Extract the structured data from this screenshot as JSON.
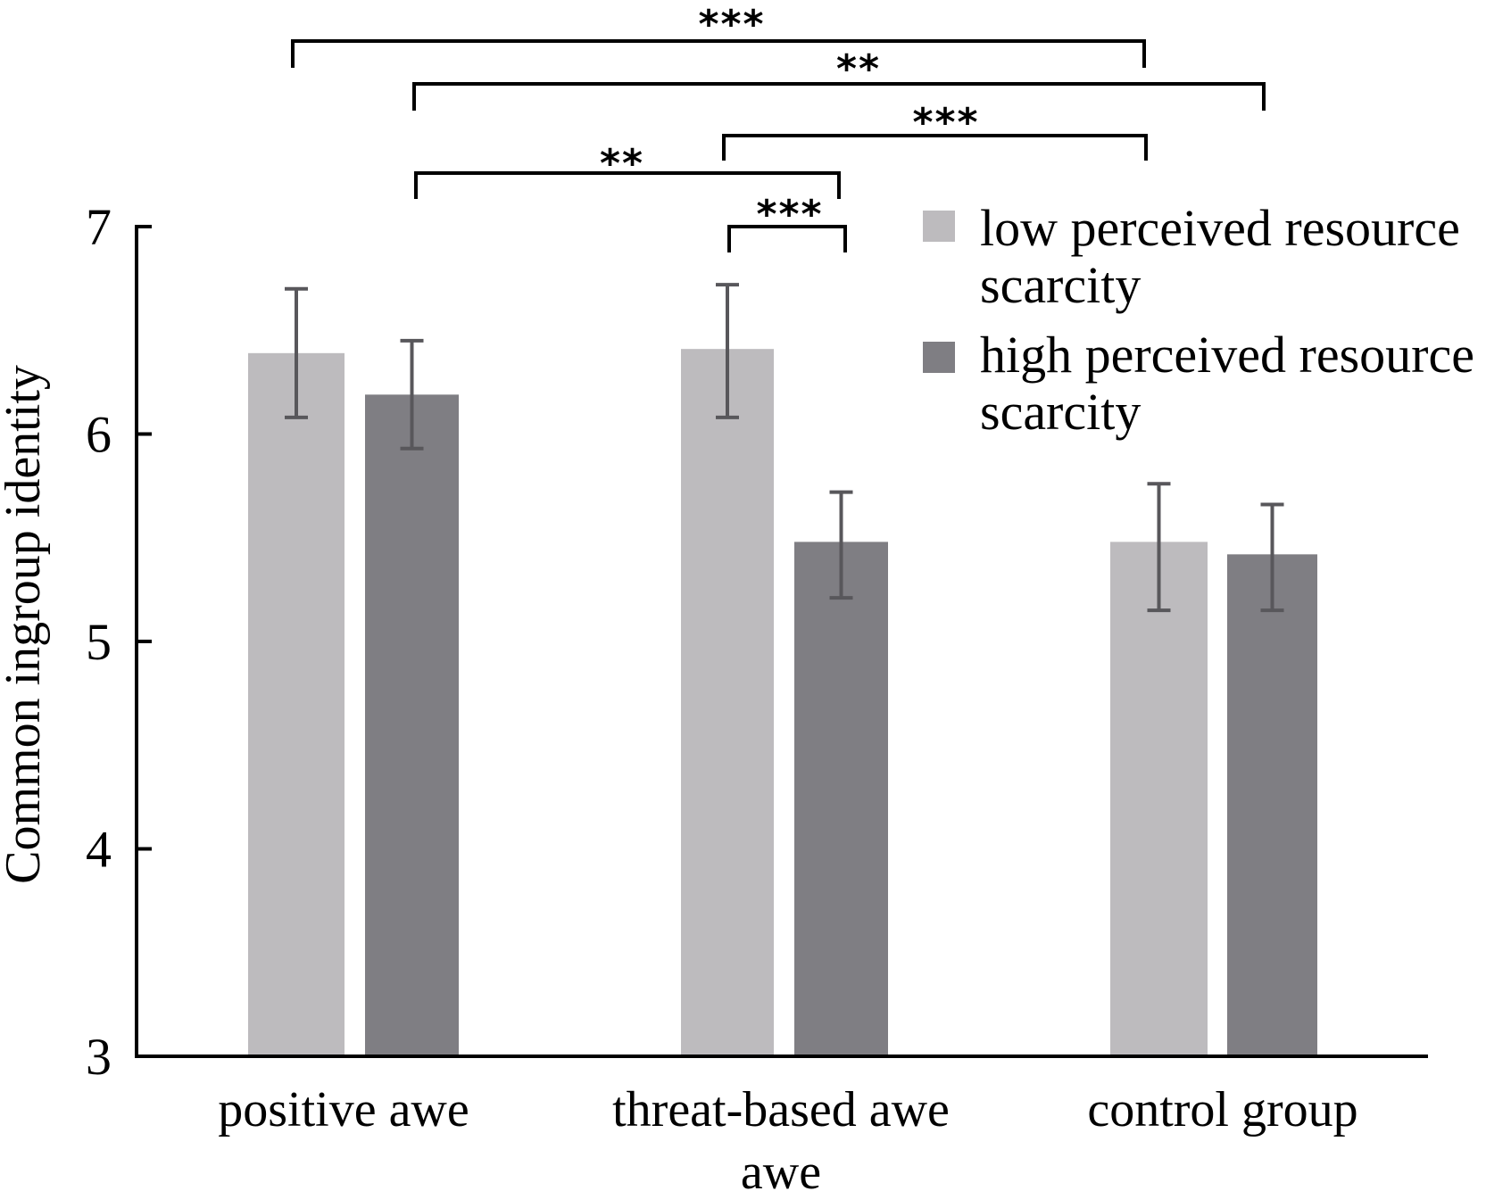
{
  "chart_data": {
    "type": "bar",
    "title": "",
    "xlabel": "",
    "ylabel": "Common ingroup identity",
    "ylim": [
      3,
      7
    ],
    "yticks": [
      3,
      4,
      5,
      6,
      7
    ],
    "grid": false,
    "legend_position": "top-right",
    "categories": [
      [
        "positive awe"
      ],
      [
        "threat-based awe",
        "awe"
      ],
      [
        "control group"
      ]
    ],
    "series": [
      {
        "name": "low perceived resource scarcity",
        "legend_lines": [
          "low perceived resource",
          "scarcity"
        ],
        "color": "#bdbbbe",
        "values": [
          6.39,
          6.41,
          5.48
        ],
        "error_upper": [
          6.7,
          6.72,
          5.76
        ],
        "error_lower": [
          6.08,
          6.08,
          5.15
        ]
      },
      {
        "name": "high perceived resource scarcity",
        "legend_lines": [
          "high perceived resource",
          "scarcity"
        ],
        "color": "#7f7e83",
        "values": [
          6.19,
          5.48,
          5.42
        ],
        "error_upper": [
          6.45,
          5.72,
          5.66
        ],
        "error_lower": [
          5.93,
          5.21,
          5.15
        ]
      }
    ],
    "error_bar_color": "#58575b",
    "significance": [
      {
        "from": {
          "category": 0,
          "series": 0
        },
        "to": {
          "category": 2,
          "series": 0
        },
        "label": "***"
      },
      {
        "from": {
          "category": 0,
          "series": 1
        },
        "to": {
          "category": 2,
          "series": 1
        },
        "label": "**"
      },
      {
        "from": {
          "category": 1,
          "series": 0
        },
        "to": {
          "category": 2,
          "series": 0
        },
        "label": "***"
      },
      {
        "from": {
          "category": 0,
          "series": 1
        },
        "to": {
          "category": 1,
          "series": 1
        },
        "label": "**"
      },
      {
        "from": {
          "category": 1,
          "series": 0
        },
        "to": {
          "category": 1,
          "series": 1
        },
        "label": "***"
      }
    ]
  }
}
